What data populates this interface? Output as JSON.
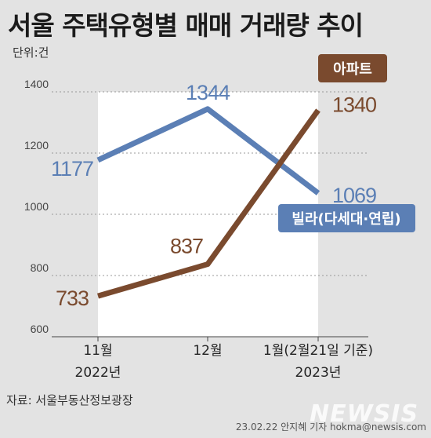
{
  "title": "서울 주택유형별 매매 거래량 추이",
  "unit_label": "단위:건",
  "source": "자료: 서울부동산정보광장",
  "credit": "23.02.22 안지혜 기자 hokma@newsis.com",
  "watermark": "NEWSIS",
  "colors": {
    "apartment": "#7a4a2e",
    "villa": "#5b7fb5",
    "fill_area": "#ffffff",
    "background": "#e3e3e3"
  },
  "chart_data": {
    "type": "line",
    "categories": [
      "11월",
      "12월",
      "1월(2월21일 기준)"
    ],
    "category_sublabels": [
      "2022년",
      "",
      "2023년"
    ],
    "ylim": [
      600,
      1400
    ],
    "yticks": [
      "600",
      "800",
      "1000",
      "1200",
      "1400"
    ],
    "grid": true,
    "series": [
      {
        "name": "아파트",
        "values": [
          733,
          837,
          1340
        ],
        "labels": [
          "733",
          "837",
          "1340"
        ]
      },
      {
        "name": "빌라(다세대·연립)",
        "values": [
          1177,
          1344,
          1069
        ],
        "labels": [
          "1177",
          "1344",
          "1069"
        ]
      }
    ]
  }
}
